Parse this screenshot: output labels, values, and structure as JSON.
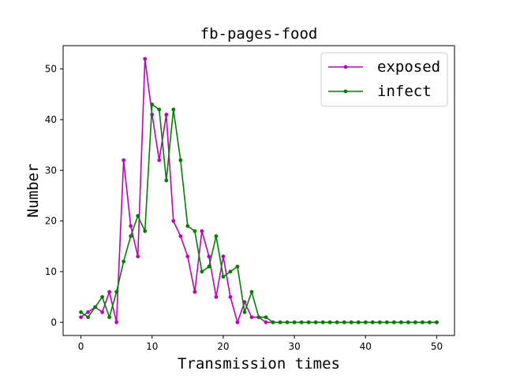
{
  "chart_data": {
    "type": "line",
    "title": "fb-pages-food",
    "xlabel": "Transmission times",
    "ylabel": "Number",
    "xlim": [
      -2.5,
      52.5
    ],
    "ylim": [
      -2.6,
      54.6
    ],
    "xticks": [
      0,
      10,
      20,
      30,
      40,
      50
    ],
    "yticks": [
      0,
      10,
      20,
      30,
      40,
      50
    ],
    "grid": false,
    "legend_position": "top-right",
    "x": [
      0,
      1,
      2,
      3,
      4,
      5,
      6,
      7,
      8,
      9,
      10,
      11,
      12,
      13,
      14,
      15,
      16,
      17,
      18,
      19,
      20,
      21,
      22,
      23,
      24,
      25,
      26,
      27,
      28,
      29,
      30,
      31,
      32,
      33,
      34,
      35,
      36,
      37,
      38,
      39,
      40,
      41,
      42,
      43,
      44,
      45,
      46,
      47,
      48,
      49,
      50
    ],
    "series": [
      {
        "name": "exposed",
        "color": "#bf00bf",
        "values": [
          1,
          2,
          3,
          2,
          6,
          0,
          32,
          19,
          13,
          52,
          41,
          32,
          41,
          20,
          17,
          13,
          6,
          18,
          13,
          5,
          13,
          5,
          0,
          4,
          1,
          1,
          0,
          0,
          0,
          0,
          0,
          0,
          0,
          0,
          0,
          0,
          0,
          0,
          0,
          0,
          0,
          0,
          0,
          0,
          0,
          0,
          0,
          0,
          0,
          0,
          0
        ]
      },
      {
        "name": "infect",
        "color": "#008000",
        "values": [
          2,
          1,
          3,
          5,
          1,
          6,
          12,
          17,
          21,
          18,
          43,
          42,
          28,
          42,
          32,
          19,
          18,
          10,
          11,
          17,
          9,
          10,
          11,
          2,
          6,
          1,
          1,
          0,
          0,
          0,
          0,
          0,
          0,
          0,
          0,
          0,
          0,
          0,
          0,
          0,
          0,
          0,
          0,
          0,
          0,
          0,
          0,
          0,
          0,
          0,
          0
        ]
      }
    ]
  }
}
